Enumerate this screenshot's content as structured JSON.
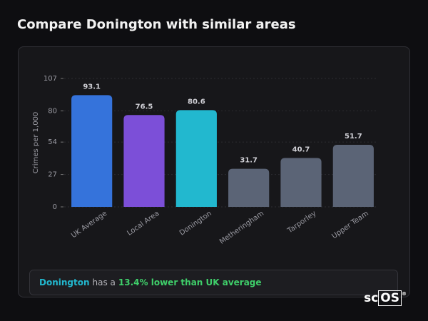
{
  "header": {
    "title": "Compare Donington with similar areas"
  },
  "chart_data": {
    "type": "bar",
    "y_label": "Crimes per 1,000",
    "categories": [
      "UK Average",
      "Local Area",
      "Donington",
      "Metheringham",
      "Tarporley",
      "Upper Team"
    ],
    "values": [
      93.1,
      76.5,
      80.6,
      31.7,
      40.7,
      51.7
    ],
    "colors": [
      "#3573db",
      "#7c4fd8",
      "#22b8cf",
      "#5b6476",
      "#5b6476",
      "#5b6476"
    ],
    "ylim": [
      0,
      107
    ],
    "yticks": [
      0,
      27,
      54,
      80,
      107
    ],
    "grid": true
  },
  "summary": {
    "area": "Donington",
    "text": "has a",
    "comparison": "13.4% lower than UK average"
  },
  "logo": [
    "sc",
    "OS",
    "®"
  ]
}
